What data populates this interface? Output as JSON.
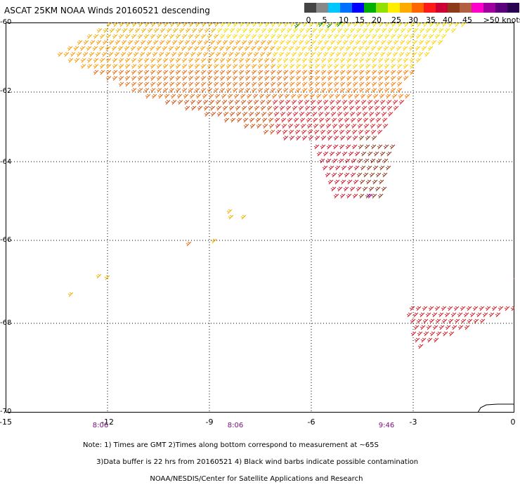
{
  "title": "ASCAT 25KM NOAA Winds 20160521 descending",
  "legend": {
    "colors": [
      "#444444",
      "#888888",
      "#00c8ff",
      "#0070ff",
      "#0000ff",
      "#00b000",
      "#90e000",
      "#ffee00",
      "#ffaa00",
      "#ff6600",
      "#ff1a1a",
      "#cc0033",
      "#8b3a1a",
      "#b06040",
      "#ff00cc",
      "#a000a0",
      "#5a007a",
      "#2a0050"
    ],
    "labels": [
      "0",
      "5",
      "10",
      "15",
      "20",
      "25",
      "30",
      "35",
      "40",
      "45",
      ">50 knots"
    ]
  },
  "axes": {
    "y_labels": [
      "-60",
      "-62",
      "-64",
      "-66",
      "-68",
      "-70"
    ],
    "x_labels": [
      "-15",
      "-12",
      "-9",
      "-6",
      "-3",
      "0"
    ]
  },
  "times": [
    "8:06",
    "8:06",
    "9:46"
  ],
  "note_lines": [
    "Note: 1) Times are GMT 2)Times along bottom correspond to measurement at ~65S",
    "      3)Data buffer is 22 hrs from 20160521 4) Black wind barbs indicate possible contamination",
    "                              NOAA/NESDIS/Center for Satellite Applications and Research"
  ]
}
